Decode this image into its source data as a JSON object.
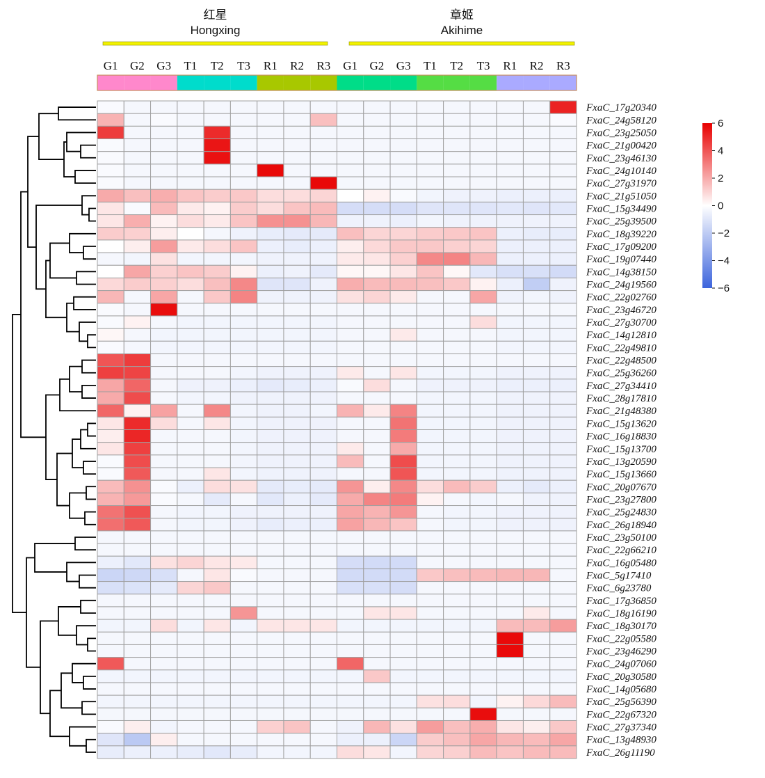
{
  "chart_data": {
    "type": "heatmap",
    "groups": [
      {
        "name_zh": "红星",
        "name_en": "Hongxing",
        "color": "#f2f200"
      },
      {
        "name_zh": "章姬",
        "name_en": "Akihime",
        "color": "#f2f200"
      }
    ],
    "columns": [
      "G1",
      "G2",
      "G3",
      "T1",
      "T2",
      "T3",
      "R1",
      "R2",
      "R3",
      "G1",
      "G2",
      "G3",
      "T1",
      "T2",
      "T3",
      "R1",
      "R2",
      "R3"
    ],
    "column_annotation_colors": [
      "#ff88cc",
      "#ff88cc",
      "#ff88cc",
      "#00dccc",
      "#00dccc",
      "#00dccc",
      "#a8c800",
      "#a8c800",
      "#a8c800",
      "#00dd88",
      "#00dd88",
      "#00dd88",
      "#55dd44",
      "#55dd44",
      "#55dd44",
      "#aaaaff",
      "#aaaaff",
      "#aaaaff"
    ],
    "rows": [
      "FxaC_17g20340",
      "FxaC_24g58120",
      "FxaC_23g25050",
      "FxaC_21g00420",
      "FxaC_23g46130",
      "FxaC_24g10140",
      "FxaC_27g31970",
      "FxaC_21g51050",
      "FxaC_15g34490",
      "FxaC_25g39500",
      "FxaC_18g39220",
      "FxaC_17g09200",
      "FxaC_19g07440",
      "FxaC_14g38150",
      "FxaC_24g19560",
      "FxaC_22g02760",
      "FxaC_23g46720",
      "FxaC_27g30700",
      "FxaC_14g12810",
      "FxaC_22g49810",
      "FxaC_22g48500",
      "FxaC_25g36260",
      "FxaC_27g34410",
      "FxaC_28g17810",
      "FxaC_21g48380",
      "FxaC_15g13620",
      "FxaC_16g18830",
      "FxaC_15g13700",
      "FxaC_13g20590",
      "FxaC_15g13660",
      "FxaC_20g07670",
      "FxaC_23g27800",
      "FxaC_25g24830",
      "FxaC_26g18940",
      "FxaC_23g50100",
      "FxaC_22g66210",
      "FxaC_16g05480",
      "FxaC_5g17410",
      "FxaC_6g23780",
      "FxaC_17g36850",
      "FxaC_18g16190",
      "FxaC_18g30170",
      "FxaC_22g05580",
      "FxaC_23g46290",
      "FxaC_24g07060",
      "FxaC_20g30580",
      "FxaC_14g05680",
      "FxaC_25g56390",
      "FxaC_22g67320",
      "FxaC_27g37340",
      "FxaC_13g48930",
      "FxaC_26g11190"
    ],
    "values": [
      [
        -0.2,
        -0.3,
        -0.3,
        -0.3,
        -0.3,
        -0.3,
        -0.3,
        -0.3,
        -0.3,
        -0.3,
        -0.3,
        -0.3,
        -0.3,
        -0.3,
        -0.3,
        -0.3,
        -0.3,
        5.2
      ],
      [
        1.8,
        -0.3,
        -0.2,
        -0.3,
        -0.3,
        -0.3,
        -0.3,
        -0.3,
        1.5,
        -0.3,
        -0.3,
        -0.3,
        -0.3,
        -0.3,
        -0.3,
        -0.3,
        -0.3,
        -0.2
      ],
      [
        4.6,
        -0.3,
        -0.3,
        -0.3,
        5.0,
        -0.3,
        -0.3,
        -0.3,
        -0.3,
        -0.3,
        -0.3,
        -0.3,
        -0.3,
        -0.3,
        -0.3,
        -0.3,
        -0.3,
        -0.3
      ],
      [
        -0.2,
        -0.3,
        -0.3,
        -0.3,
        5.5,
        -0.3,
        -0.3,
        -0.3,
        -0.3,
        -0.3,
        -0.3,
        -0.3,
        -0.3,
        -0.3,
        -0.3,
        -0.3,
        -0.3,
        -0.3
      ],
      [
        -0.2,
        -0.3,
        -0.3,
        -0.3,
        5.6,
        -0.3,
        -0.3,
        -0.3,
        -0.3,
        -0.3,
        -0.3,
        -0.3,
        -0.3,
        -0.3,
        -0.3,
        -0.3,
        -0.3,
        -0.3
      ],
      [
        -0.2,
        -0.3,
        -0.3,
        -0.3,
        -0.3,
        -0.3,
        5.8,
        -0.3,
        -0.3,
        -0.3,
        -0.3,
        -0.3,
        -0.3,
        -0.3,
        -0.3,
        -0.3,
        -0.3,
        -0.3
      ],
      [
        -0.2,
        -0.3,
        -0.3,
        -0.3,
        -0.3,
        -0.3,
        -0.3,
        -0.3,
        5.8,
        -0.3,
        -0.3,
        -0.3,
        -0.3,
        -0.3,
        -0.3,
        -0.3,
        -0.3,
        -0.3
      ],
      [
        2.0,
        1.5,
        1.9,
        1.4,
        1.2,
        1.3,
        0.8,
        0.8,
        1.0,
        0.0,
        0.3,
        -0.2,
        -0.4,
        -0.5,
        -0.5,
        -0.6,
        -0.6,
        -0.6
      ],
      [
        0.6,
        -0.2,
        1.6,
        0.5,
        0.3,
        1.2,
        0.8,
        1.4,
        1.6,
        -1.3,
        -1.3,
        -1.3,
        -1.0,
        -1.0,
        -1.0,
        -0.9,
        -1.0,
        -0.9
      ],
      [
        0.6,
        1.9,
        0.3,
        0.8,
        0.5,
        1.4,
        2.6,
        2.6,
        1.7,
        -0.5,
        -0.5,
        -0.6,
        -0.4,
        -0.5,
        -0.5,
        -0.5,
        -0.5,
        -0.5
      ],
      [
        1.2,
        1.1,
        0.4,
        0.0,
        -0.3,
        -0.5,
        -0.7,
        -0.8,
        -0.8,
        1.5,
        1.0,
        1.0,
        1.2,
        1.3,
        1.4,
        -0.6,
        -0.7,
        -0.7
      ],
      [
        0.0,
        0.4,
        2.3,
        0.5,
        0.8,
        1.4,
        -0.6,
        -0.7,
        -0.6,
        0.4,
        0.9,
        1.3,
        1.3,
        1.1,
        1.0,
        -0.6,
        -0.6,
        -0.6
      ],
      [
        -0.3,
        -0.4,
        0.7,
        -0.4,
        -0.4,
        -0.4,
        -0.5,
        -0.5,
        -0.5,
        0.5,
        0.6,
        1.1,
        2.8,
        2.9,
        1.7,
        -0.6,
        -0.6,
        -0.6
      ],
      [
        0.0,
        2.1,
        1.1,
        1.4,
        1.2,
        0.3,
        -0.6,
        -0.5,
        -0.8,
        0.2,
        0.2,
        0.6,
        1.4,
        0.2,
        -0.9,
        -1.2,
        -1.2,
        -1.4
      ],
      [
        0.9,
        1.2,
        1.1,
        0.8,
        1.5,
        2.8,
        -1.0,
        -1.0,
        -0.5,
        1.9,
        1.6,
        1.6,
        1.5,
        1.3,
        0.3,
        -0.6,
        -1.9,
        -0.5
      ],
      [
        1.7,
        -0.3,
        2.1,
        -0.3,
        1.3,
        2.9,
        -0.5,
        -0.5,
        -0.5,
        0.7,
        1.0,
        0.5,
        -0.3,
        -0.3,
        2.1,
        -0.5,
        -0.4,
        -0.5
      ],
      [
        -0.2,
        -0.3,
        5.7,
        -0.3,
        -0.3,
        -0.3,
        -0.3,
        -0.3,
        -0.3,
        -0.3,
        -0.3,
        -0.3,
        -0.3,
        -0.3,
        -0.3,
        -0.3,
        -0.3,
        -0.3
      ],
      [
        -0.2,
        0.3,
        -0.3,
        -0.4,
        -0.4,
        -0.4,
        -0.4,
        -0.4,
        -0.4,
        -0.3,
        -0.3,
        -0.3,
        -0.3,
        -0.3,
        0.8,
        -0.4,
        -0.4,
        -0.4
      ],
      [
        0.2,
        -0.3,
        -0.4,
        -0.4,
        -0.4,
        -0.4,
        -0.4,
        -0.4,
        -0.4,
        -0.3,
        -0.3,
        0.5,
        -0.3,
        -0.3,
        -0.3,
        -0.4,
        -0.4,
        -0.4
      ],
      [
        -0.2,
        -0.3,
        -0.4,
        -0.4,
        -0.4,
        -0.4,
        -0.4,
        -0.4,
        -0.4,
        -0.3,
        -0.3,
        -0.3,
        -0.3,
        -0.3,
        -0.3,
        -0.4,
        -0.4,
        -0.4
      ],
      [
        4.0,
        4.6,
        -0.3,
        -0.3,
        -0.3,
        -0.3,
        -0.3,
        -0.3,
        -0.3,
        -0.3,
        -0.3,
        -0.3,
        -0.3,
        -0.3,
        -0.3,
        -0.3,
        -0.3,
        -0.3
      ],
      [
        4.5,
        4.4,
        -0.3,
        -0.3,
        -0.3,
        -0.4,
        -0.5,
        -0.5,
        -0.5,
        0.5,
        -0.3,
        0.6,
        -0.4,
        -0.4,
        -0.4,
        -0.5,
        -0.5,
        -0.5
      ],
      [
        2.1,
        3.6,
        -0.3,
        -0.5,
        -0.5,
        -0.6,
        -0.8,
        -0.7,
        -0.6,
        -0.2,
        0.8,
        -0.3,
        -0.5,
        -0.5,
        -0.5,
        -0.6,
        -0.6,
        -0.6
      ],
      [
        2.0,
        4.2,
        -0.3,
        -0.4,
        -0.4,
        -0.5,
        -0.5,
        -0.5,
        -0.5,
        -0.3,
        -0.3,
        -0.3,
        -0.4,
        -0.4,
        -0.4,
        -0.5,
        -0.5,
        -0.5
      ],
      [
        3.6,
        0.3,
        2.2,
        -0.3,
        2.8,
        -0.4,
        -0.5,
        -0.5,
        -0.4,
        1.8,
        0.5,
        2.9,
        -0.4,
        -0.4,
        -0.4,
        -0.5,
        -0.5,
        -0.5
      ],
      [
        0.6,
        5.0,
        0.8,
        -0.3,
        0.6,
        -0.4,
        -0.5,
        -0.5,
        -0.5,
        -0.3,
        -0.3,
        3.3,
        -0.4,
        -0.4,
        -0.4,
        -0.5,
        -0.5,
        -0.5
      ],
      [
        0.4,
        5.1,
        -0.3,
        -0.3,
        -0.3,
        -0.4,
        -0.5,
        -0.5,
        -0.5,
        -0.3,
        -0.3,
        3.1,
        -0.4,
        -0.4,
        -0.4,
        -0.5,
        -0.5,
        -0.5
      ],
      [
        0.6,
        4.5,
        -0.3,
        -0.3,
        -0.3,
        -0.4,
        -0.5,
        -0.5,
        -0.5,
        0.5,
        -0.3,
        2.0,
        -0.4,
        -0.4,
        -0.4,
        -0.5,
        -0.5,
        -0.5
      ],
      [
        -0.2,
        4.2,
        -0.3,
        -0.3,
        -0.3,
        -0.4,
        -0.5,
        -0.5,
        -0.5,
        1.6,
        -0.3,
        4.2,
        -0.4,
        -0.4,
        -0.4,
        -0.5,
        -0.5,
        -0.5
      ],
      [
        -0.2,
        3.9,
        -0.3,
        -0.3,
        0.6,
        -0.4,
        -0.5,
        -0.5,
        -0.5,
        -0.3,
        -0.3,
        4.0,
        -0.4,
        -0.4,
        -0.4,
        -0.5,
        -0.5,
        -0.5
      ],
      [
        1.6,
        2.6,
        -0.2,
        -0.6,
        0.8,
        0.7,
        -0.8,
        -0.7,
        -0.8,
        2.5,
        0.4,
        2.8,
        0.8,
        1.6,
        1.2,
        -0.6,
        -0.8,
        -0.6
      ],
      [
        1.8,
        2.4,
        -0.2,
        -0.3,
        -0.8,
        -0.3,
        -0.9,
        -0.6,
        -0.8,
        2.0,
        2.9,
        3.1,
        0.3,
        -0.3,
        -0.4,
        -0.3,
        -0.5,
        -0.5
      ],
      [
        3.3,
        4.1,
        -0.3,
        -0.4,
        -0.4,
        -0.5,
        -0.5,
        -0.5,
        -0.5,
        2.1,
        1.8,
        2.5,
        -0.3,
        -0.4,
        -0.4,
        -0.5,
        -0.5,
        -0.5
      ],
      [
        3.4,
        3.9,
        -0.3,
        -0.4,
        -0.4,
        -0.5,
        -0.7,
        -0.6,
        -0.6,
        2.2,
        1.7,
        1.4,
        -0.3,
        -0.4,
        -0.4,
        -0.5,
        -0.5,
        -0.5
      ],
      [
        -0.3,
        -0.3,
        -0.3,
        -0.3,
        -0.3,
        -0.3,
        -0.3,
        -0.3,
        -0.3,
        -0.3,
        -0.3,
        -0.3,
        -0.3,
        -0.3,
        -0.3,
        -0.3,
        -0.3,
        -0.3
      ],
      [
        -0.3,
        -0.3,
        -0.3,
        -0.3,
        -0.3,
        -0.3,
        -0.3,
        -0.3,
        -0.3,
        -0.3,
        -0.3,
        -0.3,
        -0.3,
        -0.3,
        -0.3,
        -0.3,
        -0.3,
        -0.3
      ],
      [
        -0.6,
        -0.9,
        0.7,
        1.0,
        0.6,
        0.5,
        -0.3,
        -0.3,
        -0.3,
        -1.3,
        -1.4,
        -1.4,
        -0.3,
        -0.3,
        -0.3,
        -0.3,
        -0.3,
        -0.3
      ],
      [
        -1.6,
        -1.5,
        -1.2,
        -0.3,
        0.6,
        -0.2,
        -0.3,
        -0.3,
        -0.3,
        -1.4,
        -1.4,
        -1.4,
        1.3,
        1.5,
        1.6,
        1.7,
        1.7,
        -0.3
      ],
      [
        -1.2,
        -1.1,
        -0.8,
        1.0,
        1.3,
        -0.3,
        -0.3,
        -0.3,
        -0.3,
        -1.2,
        -1.2,
        -1.3,
        -0.3,
        -0.3,
        -0.3,
        -0.3,
        -0.3,
        -0.3
      ],
      [
        -0.3,
        -0.3,
        -0.3,
        -0.3,
        -0.3,
        -0.3,
        -0.3,
        -0.3,
        -0.3,
        -0.3,
        -0.3,
        -0.3,
        -0.3,
        -0.3,
        -0.3,
        -0.3,
        -0.3,
        -0.3
      ],
      [
        -0.3,
        -0.3,
        -0.3,
        -0.3,
        -0.3,
        2.5,
        -0.3,
        -0.3,
        -0.3,
        -0.3,
        0.6,
        0.6,
        -0.3,
        -0.3,
        -0.3,
        -0.3,
        0.5,
        -0.3
      ],
      [
        -0.4,
        -0.4,
        0.8,
        -0.4,
        0.6,
        -0.4,
        0.6,
        0.6,
        0.6,
        -0.4,
        -0.4,
        -0.4,
        -0.4,
        -0.4,
        -0.4,
        1.6,
        1.6,
        2.3
      ],
      [
        -0.3,
        -0.3,
        -0.3,
        -0.3,
        -0.3,
        -0.3,
        -0.3,
        -0.3,
        -0.3,
        -0.3,
        -0.3,
        -0.3,
        -0.3,
        -0.3,
        -0.3,
        5.8,
        -0.3,
        -0.3
      ],
      [
        -0.3,
        -0.3,
        -0.3,
        -0.3,
        -0.3,
        -0.3,
        -0.3,
        -0.3,
        -0.3,
        -0.3,
        -0.3,
        -0.3,
        -0.3,
        -0.3,
        -0.3,
        5.8,
        -0.3,
        -0.3
      ],
      [
        3.9,
        -0.3,
        -0.3,
        -0.3,
        -0.3,
        -0.3,
        -0.3,
        -0.3,
        -0.3,
        3.6,
        -0.3,
        -0.3,
        -0.3,
        -0.3,
        -0.3,
        -0.3,
        -0.3,
        -0.3
      ],
      [
        -0.4,
        -0.4,
        -0.4,
        -0.4,
        -0.4,
        -0.4,
        -0.4,
        -0.4,
        -0.4,
        -0.4,
        1.3,
        -0.4,
        -0.4,
        -0.4,
        -0.4,
        -0.4,
        -0.4,
        -0.4
      ],
      [
        -0.3,
        -0.3,
        -0.3,
        -0.3,
        -0.3,
        -0.3,
        -0.3,
        -0.3,
        -0.3,
        -0.3,
        -0.3,
        -0.3,
        -0.3,
        -0.3,
        -0.3,
        -0.3,
        -0.3,
        -0.3
      ],
      [
        -0.4,
        -0.4,
        -0.4,
        -0.4,
        -0.4,
        -0.4,
        -0.4,
        -0.4,
        -0.4,
        -0.4,
        -0.4,
        -0.4,
        0.7,
        0.8,
        -0.4,
        0.3,
        0.9,
        1.6
      ],
      [
        -0.3,
        -0.3,
        -0.3,
        -0.3,
        -0.3,
        -0.3,
        -0.3,
        -0.3,
        -0.3,
        -0.3,
        -0.3,
        -0.3,
        -0.3,
        -0.3,
        5.7,
        -0.3,
        -0.3,
        -0.3
      ],
      [
        -0.2,
        0.4,
        -0.4,
        -0.3,
        -0.3,
        -0.3,
        1.1,
        1.4,
        -0.3,
        -0.5,
        1.7,
        0.7,
        2.3,
        1.5,
        1.9,
        0.6,
        0.4,
        1.3
      ],
      [
        -1.0,
        -2.1,
        0.4,
        -0.3,
        -0.3,
        -0.3,
        -0.3,
        -0.3,
        -0.3,
        -0.6,
        -0.6,
        -1.6,
        1.2,
        1.5,
        2.1,
        1.7,
        1.6,
        2.1
      ],
      [
        -0.7,
        -0.6,
        -0.6,
        -0.7,
        -0.9,
        -0.7,
        -0.4,
        -0.4,
        -0.4,
        0.8,
        0.6,
        -0.4,
        1.0,
        1.1,
        1.6,
        1.4,
        1.6,
        1.6
      ]
    ],
    "legend": {
      "ticks": [
        "6",
        "4",
        "2",
        "0",
        "−2",
        "−4",
        "−6"
      ],
      "min": -6,
      "max": 6,
      "colors": [
        "#3c64dc",
        "#ffffff",
        "#e80000"
      ]
    }
  }
}
